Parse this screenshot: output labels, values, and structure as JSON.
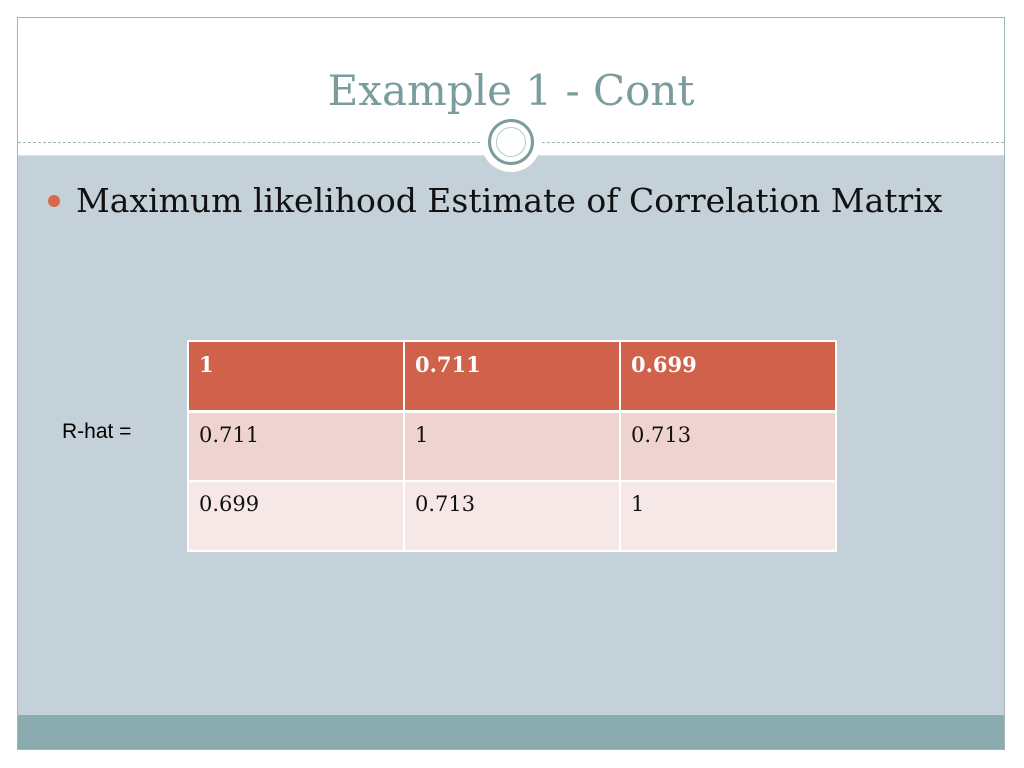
{
  "slide": {
    "title": "Example 1 - Cont",
    "bullet": "Maximum likelihood Estimate of Correlation Matrix",
    "matrix_label": "R-hat =",
    "matrix": {
      "rows": [
        [
          "1",
          "0.711",
          "0.699"
        ],
        [
          "0.711",
          "1",
          "0.713"
        ],
        [
          "0.699",
          "0.713",
          "1"
        ]
      ]
    }
  },
  "colors": {
    "title": "#7a9c9c",
    "content_background": "#c5d1d8",
    "footer_bar": "#8aacae",
    "bullet": "#d9684c",
    "table_header": "#d0614a",
    "table_row_odd": "#efd3d0",
    "table_row_even": "#f6e8e7"
  }
}
